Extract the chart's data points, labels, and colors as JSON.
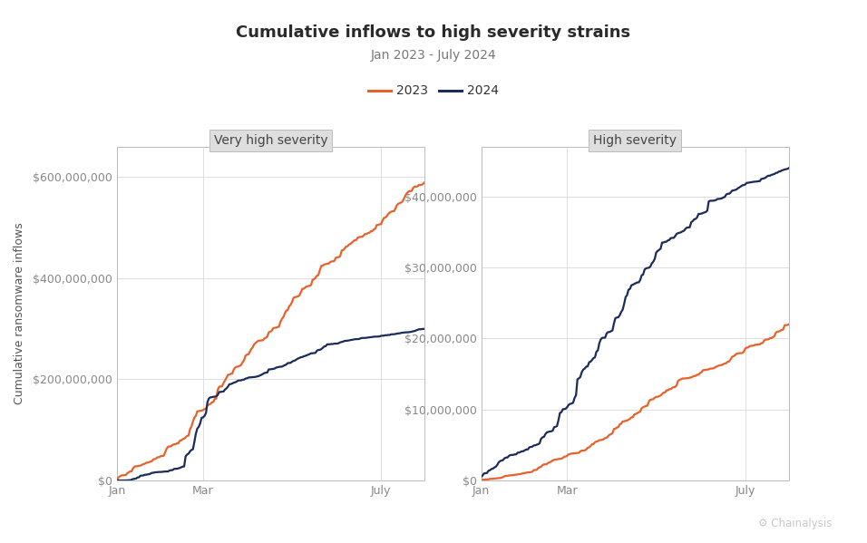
{
  "title": "Cumulative inflows to high severity strains",
  "subtitle": "Jan 2023 - July 2024",
  "ylabel": "Cumulative ransomware inflows",
  "color_2023": "#E8612A",
  "color_2024": "#1C2B5A",
  "plot_bg": "#FFFFFF",
  "panel_header_bg": "#DEDEDE",
  "grid_color": "#DDDDDD",
  "spine_color": "#BBBBBB",
  "panel1_title": "Very high severity",
  "panel2_title": "High severity",
  "panel1_ytick_labels": [
    "$0",
    "$200,000,000",
    "$400,000,000",
    "$600,000,000"
  ],
  "panel1_yticks": [
    0,
    200000000,
    400000000,
    600000000
  ],
  "panel1_ylim": [
    0,
    660000000
  ],
  "panel2_ytick_labels": [
    "$0",
    "$10,000,000",
    "$20,000,000",
    "$30,000,000",
    "$40,000,000"
  ],
  "panel2_yticks": [
    0,
    10000000,
    20000000,
    30000000,
    40000000
  ],
  "panel2_ylim": [
    0,
    47000000
  ],
  "xtick_positions": [
    0,
    59,
    181
  ],
  "xtick_labels": [
    "Jan",
    "Mar",
    "July"
  ],
  "n_days": 212,
  "legend_labels": [
    "2023",
    "2024"
  ],
  "title_fontsize": 13,
  "subtitle_fontsize": 10,
  "tick_fontsize": 9,
  "panel_title_fontsize": 10,
  "legend_fontsize": 10,
  "ylabel_fontsize": 9,
  "lw": 1.6,
  "watermark_text": "⚙ Chainalysis",
  "watermark_color": "#C8C8C8"
}
